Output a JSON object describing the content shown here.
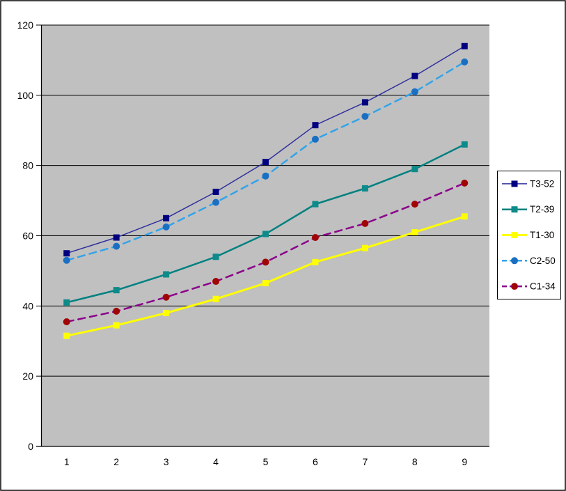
{
  "chart_data": {
    "type": "line",
    "title": "",
    "xlabel": "",
    "ylabel": "",
    "categories": [
      "1",
      "2",
      "3",
      "4",
      "5",
      "6",
      "7",
      "8",
      "9"
    ],
    "series": [
      {
        "name": "T3-52",
        "values": [
          55,
          59.5,
          65,
          72.5,
          81,
          91.5,
          98,
          105.5,
          114
        ],
        "line_color": "#30309E",
        "marker_color": "#000080",
        "marker": "square",
        "line_style": "solid",
        "line_width": 1.5
      },
      {
        "name": "T2-39",
        "values": [
          41,
          44.5,
          49,
          54,
          60.5,
          69,
          73.5,
          79,
          86
        ],
        "line_color": "#008080",
        "marker_color": "#0D8A8A",
        "marker": "square",
        "line_style": "solid",
        "line_width": 2.5
      },
      {
        "name": "T1-30",
        "values": [
          31.5,
          34.5,
          38,
          42,
          46.5,
          52.5,
          56.5,
          61,
          65.5
        ],
        "line_color": "#FFFF00",
        "marker_color": "#FFFF00",
        "marker": "square",
        "line_style": "solid",
        "line_width": 3
      },
      {
        "name": "C2-50",
        "values": [
          53,
          57,
          62.5,
          69.5,
          77,
          87.5,
          94,
          101,
          109.5
        ],
        "line_color": "#33A3E8",
        "marker_color": "#1B6FC2",
        "marker": "circle",
        "line_style": "dashed",
        "line_width": 2.5
      },
      {
        "name": "C1-34",
        "values": [
          35.5,
          38.5,
          42.5,
          47,
          52.5,
          59.5,
          63.5,
          69,
          75
        ],
        "line_color": "#8B008B",
        "marker_color": "#A00505",
        "marker": "circle",
        "line_style": "dashed",
        "line_width": 2.5
      }
    ],
    "ylim": [
      0,
      120
    ],
    "yticks": [
      0,
      20,
      40,
      60,
      80,
      100,
      120
    ],
    "grid": true,
    "legend_position": "right",
    "legend_labels": [
      "T3-52",
      "T2-39",
      "T1-30",
      "C2-50",
      "C1-34"
    ],
    "colors": {
      "plot_background": "#C0C0C0",
      "axis": "#000000",
      "gridline": "#000000",
      "text": "#000000",
      "chart_background": "#FFFFFF",
      "legend_background": "#FFFFFF",
      "frame_border": "#000000"
    }
  }
}
